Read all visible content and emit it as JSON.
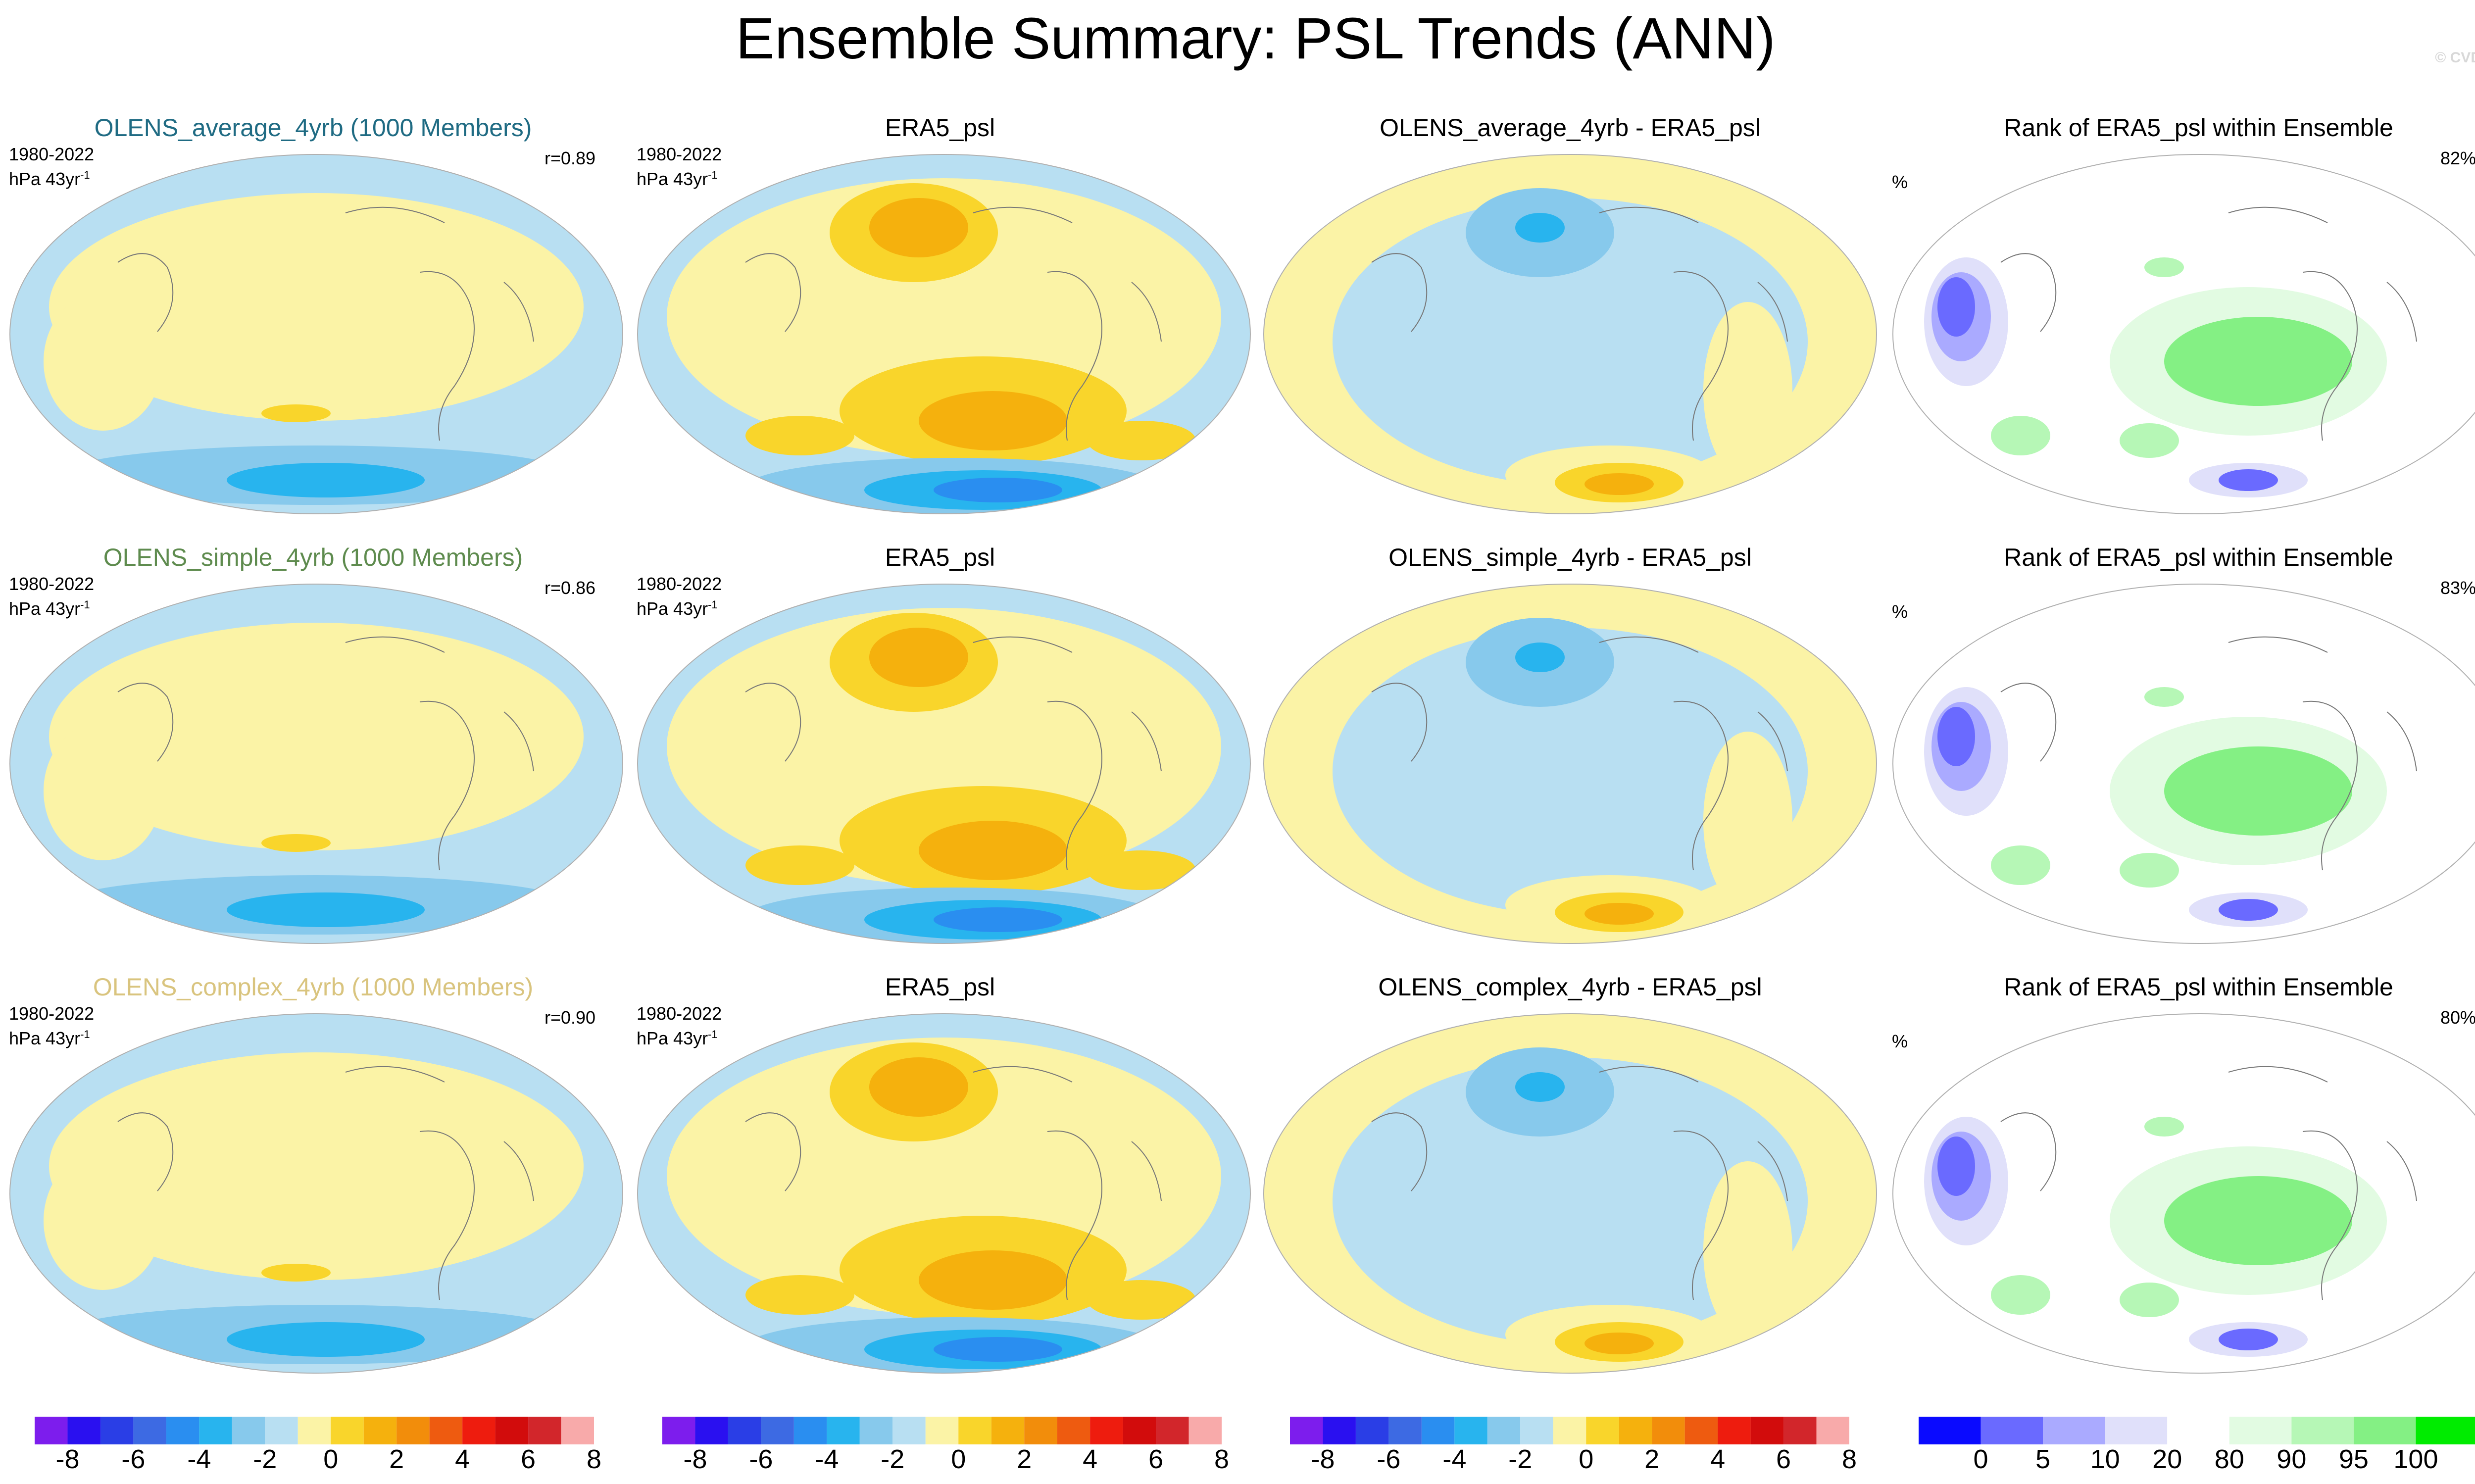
{
  "figure": {
    "title": "Ensemble Summary: PSL Trends (ANN)",
    "copyright": "© CVDP"
  },
  "colors": {
    "ocean_blue": "#b8dff2",
    "pale_yellow": "#fbf3a6",
    "trend_scale": [
      "#7d1ded",
      "#2a10f0",
      "#2a3ee6",
      "#3d6ae3",
      "#2a8ef0",
      "#28b4ee",
      "#87c9ec",
      "#b8dff2",
      "#fbf3a6",
      "#f9d52b",
      "#f5b10d",
      "#f28d0b",
      "#ee5b10",
      "#ee1c0e",
      "#d20c0c",
      "#d2262b",
      "#f8aaaa"
    ],
    "rank_scale": [
      "#0a0aff",
      "#6a6aff",
      "#aaaaff",
      "#e0e0fa",
      "#ffffff",
      "#e2fbe2",
      "#b6f7b6",
      "#84f084",
      "#00ec00"
    ]
  },
  "rows": [
    {
      "model_label": "OLENS_average_4yrb (1000 Members)",
      "model_color": "#1f6b83",
      "period": "1980-2022",
      "units": "hPa 43yr",
      "units_sup": "-1",
      "correlation": "r=0.89",
      "obs_label": "ERA5_psl",
      "diff_label": "OLENS_average_4yrb - ERA5_psl",
      "rank_label": "Rank of ERA5_psl within Ensemble",
      "rank_pct": "82%",
      "rank_unit": "%"
    },
    {
      "model_label": "OLENS_simple_4yrb (1000 Members)",
      "model_color": "#5e8b4e",
      "period": "1980-2022",
      "units": "hPa 43yr",
      "units_sup": "-1",
      "correlation": "r=0.86",
      "obs_label": "ERA5_psl",
      "diff_label": "OLENS_simple_4yrb - ERA5_psl",
      "rank_label": "Rank of ERA5_psl within Ensemble",
      "rank_pct": "83%",
      "rank_unit": "%"
    },
    {
      "model_label": "OLENS_complex_4yrb (1000 Members)",
      "model_color": "#d9c47e",
      "period": "1980-2022",
      "units": "hPa 43yr",
      "units_sup": "-1",
      "correlation": "r=0.90",
      "obs_label": "ERA5_psl",
      "diff_label": "OLENS_complex_4yrb - ERA5_psl",
      "rank_label": "Rank of ERA5_psl within Ensemble",
      "rank_pct": "80%",
      "rank_unit": "%"
    }
  ],
  "colorbars": {
    "trend_ticks": [
      "-8",
      "-6",
      "-4",
      "-2",
      "0",
      "2",
      "4",
      "6",
      "8"
    ],
    "rank_ticks": [
      "0",
      "5",
      "10",
      "20",
      "80",
      "90",
      "95",
      "100"
    ]
  }
}
